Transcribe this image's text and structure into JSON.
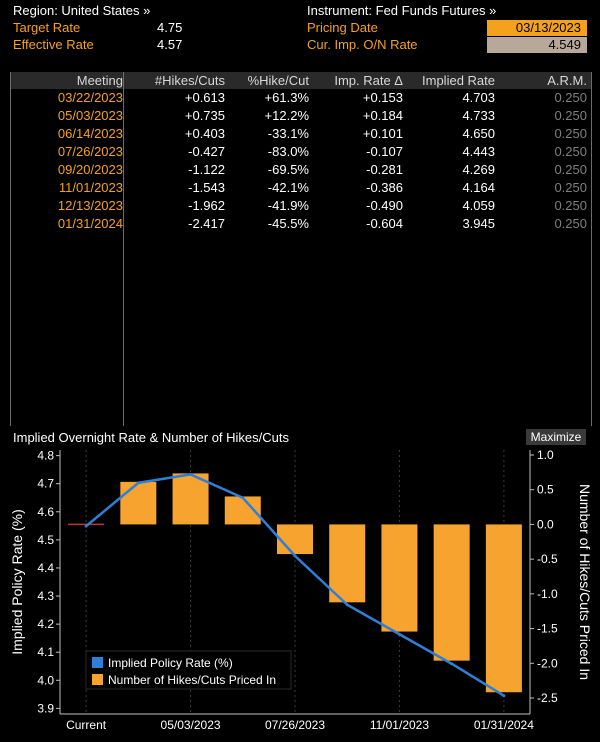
{
  "header": {
    "region_label": "Region: United States »",
    "instrument_label": "Instrument: Fed Funds Futures »",
    "target_rate_label": "Target Rate",
    "target_rate_value": "4.75",
    "effective_rate_label": "Effective Rate",
    "effective_rate_value": "4.57",
    "pricing_date_label": "Pricing Date",
    "pricing_date_value": "03/13/2023",
    "cur_imp_label": "Cur. Imp. O/N Rate",
    "cur_imp_value": "4.549"
  },
  "table": {
    "columns": [
      "Meeting",
      "#Hikes/Cuts",
      "%Hike/Cut",
      "Imp. Rate Δ",
      "Implied Rate",
      "A.R.M."
    ],
    "rows": [
      [
        "03/22/2023",
        "+0.613",
        "+61.3%",
        "+0.153",
        "4.703",
        "0.250"
      ],
      [
        "05/03/2023",
        "+0.735",
        "+12.2%",
        "+0.184",
        "4.733",
        "0.250"
      ],
      [
        "06/14/2023",
        "+0.403",
        "-33.1%",
        "+0.101",
        "4.650",
        "0.250"
      ],
      [
        "07/26/2023",
        "-0.427",
        "-83.0%",
        "-0.107",
        "4.443",
        "0.250"
      ],
      [
        "09/20/2023",
        "-1.122",
        "-69.5%",
        "-0.281",
        "4.269",
        "0.250"
      ],
      [
        "11/01/2023",
        "-1.543",
        "-42.1%",
        "-0.386",
        "4.164",
        "0.250"
      ],
      [
        "12/13/2023",
        "-1.962",
        "-41.9%",
        "-0.490",
        "4.059",
        "0.250"
      ],
      [
        "01/31/2024",
        "-2.417",
        "-45.5%",
        "-0.604",
        "3.945",
        "0.250"
      ]
    ]
  },
  "chart_title": "Implied Overnight Rate & Number of Hikes/Cuts",
  "maximize_label": "Maximize",
  "chart_data": {
    "type": "bar",
    "categories": [
      "Current",
      "03/22/2023",
      "05/03/2023",
      "06/14/2023",
      "07/26/2023",
      "09/20/2023",
      "11/01/2023",
      "12/13/2023",
      "01/31/2024"
    ],
    "x_tick_labels": [
      "Current",
      "05/03/2023",
      "07/26/2023",
      "11/01/2023",
      "01/31/2024"
    ],
    "series": [
      {
        "name": "Number of Hikes/Cuts Priced In",
        "type": "bar",
        "axis": "right",
        "color": "#f7a330",
        "values": [
          0,
          0.613,
          0.735,
          0.403,
          -0.427,
          -1.122,
          -1.543,
          -1.962,
          -2.417
        ]
      },
      {
        "name": "Implied Policy Rate (%)",
        "type": "line",
        "axis": "left",
        "color": "#2f7fd8",
        "values": [
          4.549,
          4.703,
          4.733,
          4.65,
          4.443,
          4.269,
          4.164,
          4.059,
          3.945
        ]
      }
    ],
    "ylabel_left": "Implied Policy Rate (%)",
    "ylabel_right": "Number of Hikes/Cuts Priced In",
    "ylim_left": [
      3.88,
      4.82
    ],
    "ylim_right": [
      -2.5,
      1.0
    ],
    "yticks_left": [
      "4.8",
      "4.7",
      "4.6",
      "4.5",
      "4.4",
      "4.3",
      "4.2",
      "4.1",
      "4.0",
      "3.9"
    ],
    "yticks_right": [
      "1.0",
      "0.5",
      "0.0",
      "-0.5",
      "-1.0",
      "-1.5",
      "-2.0",
      "-2.5"
    ],
    "legend_position": "bottom-left"
  }
}
